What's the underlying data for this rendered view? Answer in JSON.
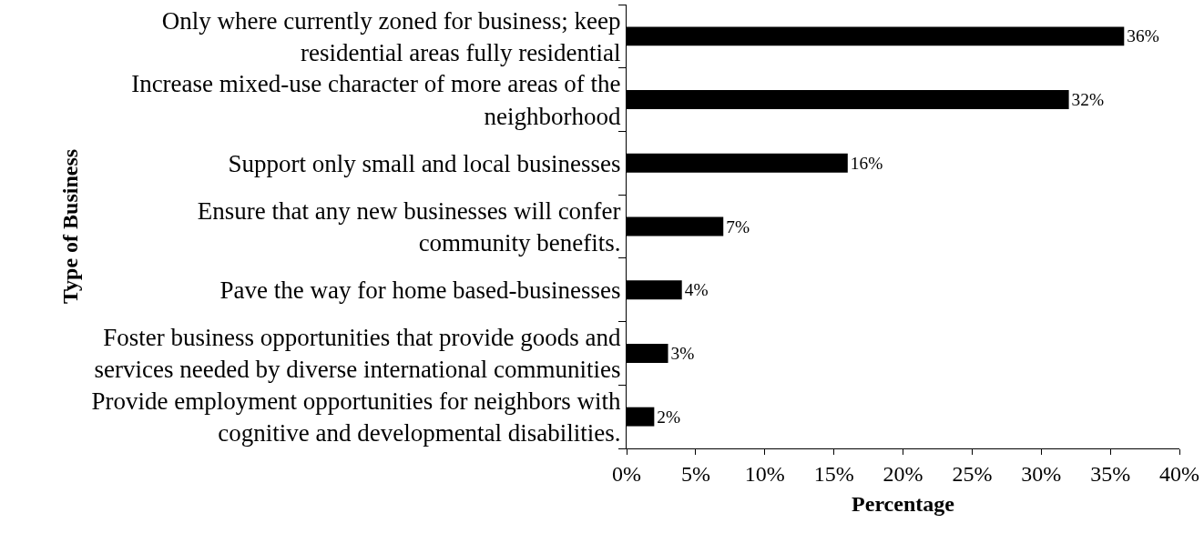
{
  "chart_data": {
    "type": "bar",
    "orientation": "horizontal",
    "xlabel": "Percentage",
    "ylabel": "Type of Business",
    "categories": [
      "Only where currently zoned for business; keep\nresidential areas fully residential",
      "Increase mixed-use character of more areas of the\nneighborhood",
      "Support only small and local businesses",
      "Ensure that any new businesses will confer\ncommunity benefits.",
      "Pave the way for home based-businesses",
      "Foster business opportunities that provide goods and\nservices needed by diverse international communities",
      "Provide employment opportunities for neighbors with\ncognitive and developmental disabilities."
    ],
    "values": [
      36,
      32,
      16,
      7,
      4,
      3,
      2
    ],
    "value_labels": [
      "36%",
      "32%",
      "16%",
      "7%",
      "4%",
      "3%",
      "2%"
    ],
    "color": "#000000",
    "xlim": [
      0,
      40
    ],
    "xticks": [
      {
        "value": 0,
        "label": "0%"
      },
      {
        "value": 5,
        "label": "5%"
      },
      {
        "value": 10,
        "label": "10%"
      },
      {
        "value": 15,
        "label": "15%"
      },
      {
        "value": 20,
        "label": "20%"
      },
      {
        "value": 25,
        "label": "25%"
      },
      {
        "value": 30,
        "label": "30%"
      },
      {
        "value": 35,
        "label": "35%"
      },
      {
        "value": 40,
        "label": "40%"
      }
    ],
    "grid": false,
    "legend": false
  }
}
